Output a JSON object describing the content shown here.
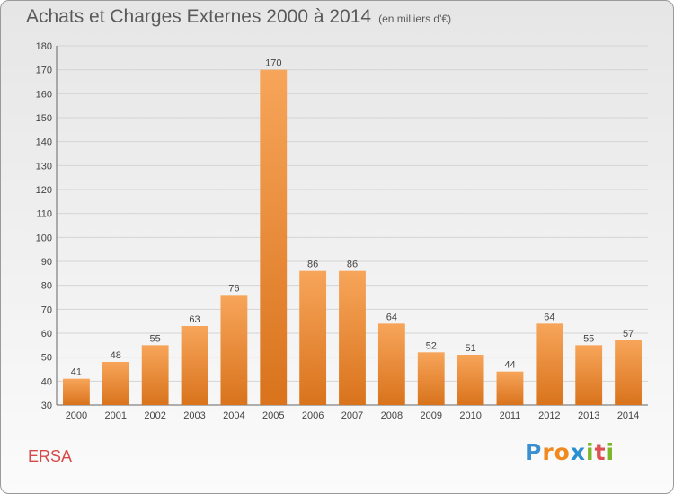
{
  "title": "Achats et Charges Externes 2000 à 2014",
  "unit": "(en milliers d'€)",
  "commune": "ERSA",
  "brand": {
    "letters": [
      "P",
      "r",
      "o",
      "x",
      "i",
      "t",
      "i"
    ],
    "colors": [
      "#3a8fd0",
      "#f08a1e",
      "#f08a1e",
      "#2a8fd0",
      "#7ab828",
      "#e05050",
      "#7ab828"
    ]
  },
  "colors": {
    "bar_light": "#f7a55a",
    "bar_dark": "#d9731c",
    "title": "#5a5a5a",
    "commune": "#d64a4a"
  },
  "chart_data": {
    "type": "bar",
    "categories": [
      "2000",
      "2001",
      "2002",
      "2003",
      "2004",
      "2005",
      "2006",
      "2007",
      "2008",
      "2009",
      "2010",
      "2011",
      "2012",
      "2013",
      "2014"
    ],
    "values": [
      41,
      48,
      55,
      63,
      76,
      170,
      86,
      86,
      64,
      52,
      51,
      44,
      64,
      55,
      57
    ],
    "ylim": [
      30,
      180
    ],
    "yticks": [
      30,
      40,
      50,
      60,
      70,
      80,
      90,
      100,
      110,
      120,
      130,
      140,
      150,
      160,
      170,
      180
    ],
    "grid": true,
    "data_labels": true
  }
}
